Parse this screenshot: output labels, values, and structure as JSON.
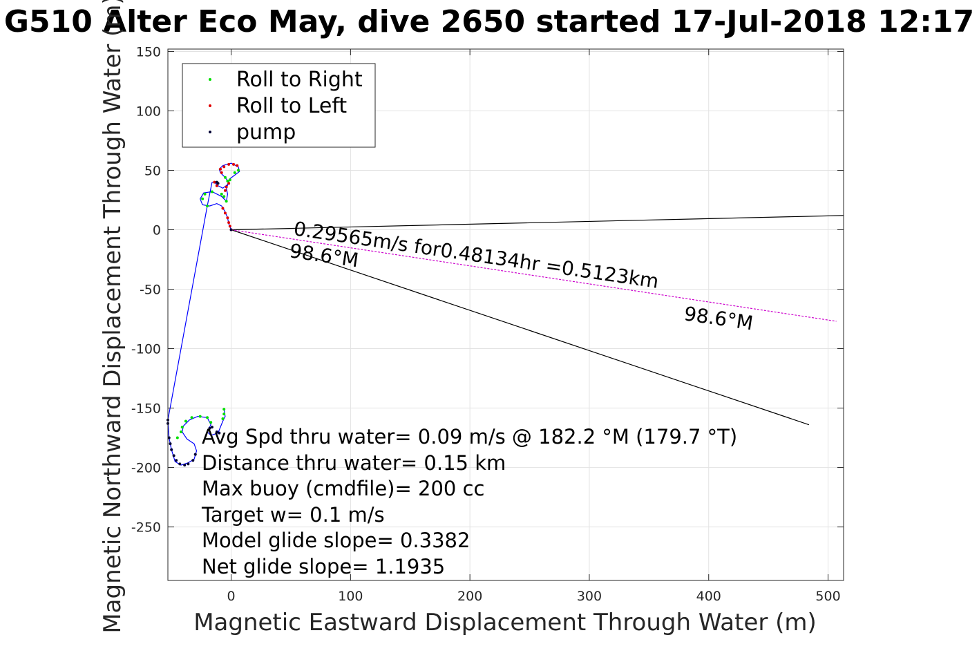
{
  "chart_data": {
    "type": "scatter",
    "title": "G510 Alter Eco May, dive 2650 started 17-Jul-2018 12:17",
    "xlabel": "Magnetic Eastward Displacement Through Water (m)",
    "ylabel": "Magnetic Northward Displacement Through Water (m)",
    "xlim": [
      -53,
      513
    ],
    "ylim": [
      -295,
      152
    ],
    "xticks": [
      0,
      100,
      200,
      300,
      400,
      500
    ],
    "yticks": [
      150,
      100,
      50,
      0,
      -50,
      -100,
      -150,
      -200,
      -250
    ],
    "grid": true,
    "legend_position": "top-left",
    "legend": [
      {
        "name": "Roll to Right",
        "color": "#00e000"
      },
      {
        "name": "Roll to Left",
        "color": "#e00000"
      },
      {
        "name": "pump",
        "color": "#000033"
      }
    ],
    "track_color": "#0000ff",
    "track_upper": [
      [
        0,
        0
      ],
      [
        -2,
        5
      ],
      [
        -3,
        10
      ],
      [
        -5,
        15
      ],
      [
        -8,
        20
      ],
      [
        -12,
        22
      ],
      [
        -18,
        20
      ],
      [
        -24,
        21
      ],
      [
        -26,
        26
      ],
      [
        -23,
        31
      ],
      [
        -16,
        32
      ],
      [
        -8,
        28
      ],
      [
        -4,
        24
      ],
      [
        -3,
        30
      ],
      [
        -4,
        35
      ],
      [
        -2,
        40
      ],
      [
        -5,
        44
      ],
      [
        -9,
        48
      ],
      [
        -10,
        51
      ],
      [
        -7,
        54
      ],
      [
        0,
        56
      ],
      [
        6,
        53
      ],
      [
        7,
        49
      ],
      [
        3,
        46
      ],
      [
        -1,
        43
      ],
      [
        -3,
        38
      ],
      [
        -7,
        35
      ],
      [
        -11,
        37
      ],
      [
        -14,
        40
      ],
      [
        -16,
        40
      ]
    ],
    "track_lower": [
      [
        -16,
        40
      ],
      [
        -20,
        20
      ],
      [
        -53,
        -160
      ],
      [
        -52,
        -175
      ],
      [
        -50,
        -185
      ],
      [
        -47,
        -195
      ],
      [
        -42,
        -198
      ],
      [
        -36,
        -196
      ],
      [
        -31,
        -193
      ],
      [
        -29,
        -186
      ],
      [
        -31,
        -180
      ],
      [
        -37,
        -176
      ],
      [
        -41,
        -170
      ],
      [
        -40,
        -165
      ],
      [
        -35,
        -160
      ],
      [
        -28,
        -157
      ],
      [
        -20,
        -158
      ],
      [
        -17,
        -164
      ],
      [
        -20,
        -170
      ],
      [
        -17,
        -173
      ],
      [
        -11,
        -171
      ],
      [
        -9,
        -166
      ],
      [
        -7,
        -161
      ],
      [
        -5,
        -157
      ],
      [
        -6,
        -151
      ]
    ],
    "roll_right_points": [
      [
        -4,
        24
      ],
      [
        -6,
        28
      ],
      [
        -8,
        30
      ],
      [
        -16,
        32
      ],
      [
        -22,
        30
      ],
      [
        -24,
        26
      ],
      [
        -3,
        41
      ],
      [
        -1,
        42
      ],
      [
        -5,
        44
      ],
      [
        3,
        48
      ],
      [
        6,
        50
      ],
      [
        -20,
        20
      ],
      [
        -45,
        -175
      ],
      [
        -42,
        -170
      ],
      [
        -41,
        -166
      ],
      [
        -38,
        -161
      ],
      [
        -33,
        -158
      ],
      [
        -26,
        -157
      ],
      [
        -20,
        -158
      ],
      [
        -17,
        -162
      ],
      [
        -7,
        -159
      ],
      [
        -6,
        -155
      ],
      [
        -6,
        -151
      ]
    ],
    "roll_left_points": [
      [
        0,
        0
      ],
      [
        -1,
        3
      ],
      [
        -2,
        6
      ],
      [
        -3,
        10
      ],
      [
        -5,
        14
      ],
      [
        -7,
        18
      ],
      [
        -5,
        33
      ],
      [
        -4,
        36
      ],
      [
        -2,
        39
      ],
      [
        -8,
        48
      ],
      [
        -9,
        51
      ],
      [
        -6,
        53
      ],
      [
        -2,
        55
      ],
      [
        2,
        55
      ],
      [
        5,
        54
      ],
      [
        -12,
        37
      ],
      [
        -14,
        40
      ]
    ],
    "pump_points": [
      [
        0,
        0
      ],
      [
        -11,
        39
      ],
      [
        -12,
        40
      ],
      [
        -53,
        -160
      ],
      [
        -53,
        -163
      ],
      [
        -52,
        -175
      ],
      [
        -51,
        -180
      ],
      [
        -50,
        -185
      ],
      [
        -48,
        -190
      ],
      [
        -46,
        -194
      ],
      [
        -43,
        -197
      ],
      [
        -39,
        -198
      ],
      [
        -36,
        -197
      ],
      [
        -32,
        -194
      ],
      [
        -30,
        -189
      ],
      [
        -18,
        -167
      ],
      [
        -16,
        -166
      ],
      [
        -12,
        -170
      ],
      [
        -10,
        -171
      ]
    ],
    "heading_lines": [
      {
        "label": "98.6°M",
        "color": "#000000",
        "from": [
          0,
          0
        ],
        "to": [
          484,
          -164
        ]
      },
      {
        "label": "",
        "color": "#000000",
        "from": [
          0,
          0
        ],
        "to": [
          513,
          12
        ]
      },
      {
        "label": "98.6°M",
        "color": "#cc00cc",
        "from": [
          0,
          0
        ],
        "to": [
          507,
          -77
        ]
      }
    ],
    "dive_annotation": "0.29565m/s for0.48134hr =0.5123km",
    "info_lines": [
      "Avg Spd thru water=  0.09 m/s @ 182.2 °M (179.7 °T)",
      "Distance thru water=  0.15 km",
      "Max buoy (cmdfile)= 200 cc",
      "Target w= 0.1 m/s",
      "Model glide slope= 0.3382",
      "Net glide slope= 1.1935"
    ]
  }
}
